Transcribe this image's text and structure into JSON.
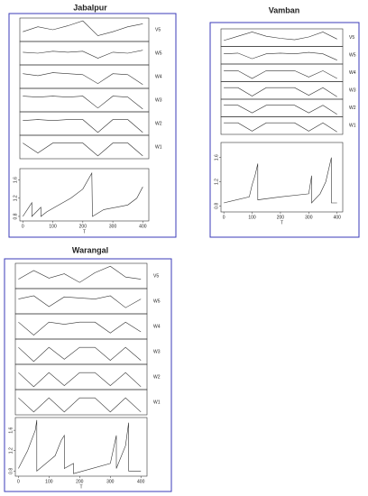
{
  "chart_data": [
    {
      "type": "wavelet",
      "title": "Jabalpur",
      "strip_x": [
        0,
        50,
        100,
        150,
        200,
        250,
        300,
        350,
        400
      ],
      "strip_ylim": [
        -1,
        1
      ],
      "strips": [
        {
          "name": "V5",
          "values": [
            -0.2,
            0.3,
            0.0,
            0.4,
            0.9,
            -0.6,
            -0.2,
            0.3,
            0.6
          ]
        },
        {
          "name": "W5",
          "values": [
            0.1,
            0.0,
            0.2,
            0.1,
            0.2,
            -0.5,
            0.1,
            0.0,
            0.3
          ]
        },
        {
          "name": "W4",
          "values": [
            0.3,
            0.1,
            0.4,
            0.3,
            0.2,
            -0.7,
            0.3,
            0.2,
            -0.8
          ]
        },
        {
          "name": "W3",
          "values": [
            0.4,
            0.3,
            0.4,
            0.3,
            0.4,
            -0.8,
            0.4,
            0.3,
            -0.9
          ]
        },
        {
          "name": "W2",
          "values": [
            0.3,
            0.4,
            0.3,
            0.4,
            0.4,
            -0.9,
            0.4,
            0.4,
            -0.9
          ]
        },
        {
          "name": "W1",
          "values": [
            0.4,
            -0.6,
            0.4,
            0.4,
            0.4,
            -0.9,
            0.4,
            0.4,
            -0.9
          ]
        }
      ],
      "x": [
        0,
        30,
        30,
        60,
        60,
        80,
        120,
        160,
        200,
        230,
        232,
        270,
        310,
        350,
        380,
        400
      ],
      "values": [
        0.8,
        1.1,
        0.8,
        1.0,
        0.8,
        0.9,
        1.05,
        1.2,
        1.4,
        1.75,
        0.8,
        0.95,
        1.0,
        1.05,
        1.2,
        1.45
      ],
      "xlim": [
        -10,
        420
      ],
      "xticks": [
        0,
        100,
        200,
        300,
        400
      ],
      "xlabel": "T",
      "ylim": [
        0.7,
        1.85
      ],
      "yticks": [
        0.8,
        1.2,
        1.6
      ]
    },
    {
      "type": "wavelet",
      "title": "Vamban",
      "strip_x": [
        0,
        50,
        100,
        150,
        200,
        250,
        300,
        350,
        400
      ],
      "strip_ylim": [
        -1,
        1
      ],
      "strips": [
        {
          "name": "V5",
          "values": [
            -0.4,
            0.2,
            0.8,
            0.2,
            -0.1,
            -0.3,
            0.1,
            0.8,
            -0.2
          ]
        },
        {
          "name": "W5",
          "values": [
            0.2,
            0.3,
            -0.5,
            0.2,
            0.3,
            0.2,
            0.4,
            0.2,
            -0.7
          ]
        },
        {
          "name": "W4",
          "values": [
            0.3,
            0.3,
            -0.8,
            0.3,
            0.3,
            0.3,
            -0.6,
            0.3,
            -0.8
          ]
        },
        {
          "name": "W3",
          "values": [
            0.4,
            0.4,
            -0.8,
            0.4,
            0.4,
            0.4,
            -0.7,
            0.4,
            -0.9
          ]
        },
        {
          "name": "W2",
          "values": [
            0.4,
            0.4,
            -0.7,
            0.4,
            0.4,
            0.4,
            -0.7,
            0.4,
            -0.9
          ]
        },
        {
          "name": "W1",
          "values": [
            0.4,
            0.4,
            -0.8,
            0.4,
            0.4,
            0.4,
            -0.8,
            0.4,
            -0.9
          ]
        }
      ],
      "x": [
        0,
        90,
        100,
        110,
        120,
        120,
        200,
        300,
        310,
        310,
        340,
        360,
        380,
        380,
        400
      ],
      "values": [
        0.85,
        0.95,
        1.15,
        1.3,
        1.5,
        0.9,
        0.95,
        1.0,
        1.3,
        0.85,
        1.0,
        1.2,
        1.6,
        0.85,
        0.85
      ],
      "xlim": [
        -10,
        420
      ],
      "xticks": [
        0,
        100,
        200,
        300,
        400
      ],
      "xlabel": "T",
      "ylim": [
        0.7,
        1.85
      ],
      "yticks": [
        0.8,
        1.2,
        1.6
      ]
    },
    {
      "type": "wavelet",
      "title": "Warangal",
      "strip_x": [
        0,
        50,
        100,
        150,
        200,
        250,
        300,
        350,
        400
      ],
      "strip_ylim": [
        -1,
        1
      ],
      "strips": [
        {
          "name": "V5",
          "values": [
            -0.3,
            0.5,
            -0.2,
            0.2,
            -0.6,
            0.3,
            0.9,
            -0.1,
            -0.3
          ]
        },
        {
          "name": "W5",
          "values": [
            0.2,
            0.5,
            -0.5,
            0.4,
            0.3,
            0.2,
            0.5,
            -0.6,
            0.2
          ]
        },
        {
          "name": "W4",
          "values": [
            0.4,
            -0.8,
            0.4,
            0.2,
            0.4,
            0.4,
            -0.6,
            0.4,
            -0.5
          ]
        },
        {
          "name": "W3",
          "values": [
            0.4,
            -0.9,
            0.4,
            -0.7,
            0.4,
            0.4,
            -0.8,
            0.4,
            -0.8
          ]
        },
        {
          "name": "W2",
          "values": [
            0.4,
            -0.9,
            0.4,
            -0.8,
            0.4,
            0.4,
            -0.8,
            0.4,
            -0.9
          ]
        },
        {
          "name": "W1",
          "values": [
            0.4,
            -0.9,
            0.4,
            -0.9,
            0.4,
            0.4,
            -0.9,
            0.4,
            -0.9
          ]
        }
      ],
      "x": [
        0,
        30,
        55,
        60,
        60,
        120,
        140,
        150,
        150,
        180,
        180,
        300,
        320,
        320,
        350,
        360,
        360,
        400
      ],
      "values": [
        0.85,
        1.2,
        1.6,
        1.8,
        0.8,
        1.1,
        1.4,
        1.5,
        0.85,
        0.95,
        0.75,
        0.95,
        1.5,
        0.85,
        1.3,
        1.75,
        0.8,
        0.8
      ],
      "xlim": [
        -10,
        420
      ],
      "xticks": [
        0,
        100,
        200,
        300,
        400
      ],
      "xlabel": "T",
      "ylim": [
        0.7,
        1.85
      ],
      "yticks": [
        0.8,
        1.2,
        1.6
      ]
    }
  ]
}
